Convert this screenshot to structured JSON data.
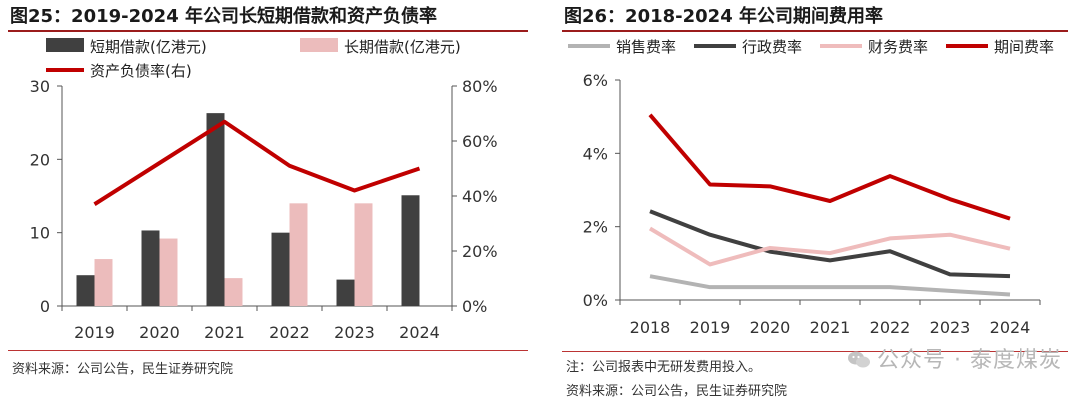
{
  "left_chart": {
    "title": "图25：2019-2024 年公司长短期借款和资产负债率",
    "source": "资料来源：公司公告，民生证券研究院",
    "chart_data": {
      "type": "bar",
      "categories": [
        "2019",
        "2020",
        "2021",
        "2022",
        "2023",
        "2024"
      ],
      "series": [
        {
          "name": "短期借款(亿港元)",
          "kind": "bar",
          "axis": "left",
          "color": "#404040",
          "values": [
            4.2,
            10.3,
            26.3,
            10.0,
            3.6,
            15.1
          ]
        },
        {
          "name": "长期借款(亿港元)",
          "kind": "bar",
          "axis": "left",
          "color": "#ecbcbc",
          "values": [
            6.4,
            9.2,
            3.8,
            14.0,
            14.0,
            null
          ]
        },
        {
          "name": "资产负债率(右)",
          "kind": "line",
          "axis": "right",
          "color": "#c00000",
          "values": [
            37,
            52,
            67,
            51,
            42,
            50
          ]
        }
      ],
      "y_left": {
        "ticks": [
          "0",
          "10",
          "20",
          "30"
        ],
        "lim": [
          0,
          30
        ]
      },
      "y_right": {
        "ticks": [
          "0%",
          "20%",
          "40%",
          "60%",
          "80%"
        ],
        "lim": [
          0,
          80
        ]
      }
    }
  },
  "right_chart": {
    "title": "图26：2018-2024 年公司期间费用率",
    "note": "注：公司报表中无研发费用投入。",
    "source": "资料来源：公司公告，民生证券研究院",
    "chart_data": {
      "type": "line",
      "categories": [
        "2018",
        "2019",
        "2020",
        "2021",
        "2022",
        "2023",
        "2024"
      ],
      "series": [
        {
          "name": "销售费率",
          "color": "#b3b3b3",
          "values": [
            0.65,
            0.35,
            0.35,
            0.35,
            0.35,
            0.25,
            0.15
          ]
        },
        {
          "name": "行政费率",
          "color": "#404040",
          "values": [
            2.42,
            1.78,
            1.32,
            1.08,
            1.33,
            0.7,
            0.65
          ]
        },
        {
          "name": "财务费率",
          "color": "#efbcbc",
          "values": [
            1.95,
            0.97,
            1.42,
            1.28,
            1.68,
            1.78,
            1.4
          ]
        },
        {
          "name": "期间费率",
          "color": "#c00000",
          "values": [
            5.05,
            3.15,
            3.1,
            2.7,
            3.38,
            2.75,
            2.22
          ]
        }
      ],
      "y": {
        "ticks": [
          "0%",
          "2%",
          "4%",
          "6%"
        ],
        "lim": [
          0,
          6
        ]
      }
    }
  },
  "watermark": {
    "text": "公众号 · 泰度煤炭"
  }
}
